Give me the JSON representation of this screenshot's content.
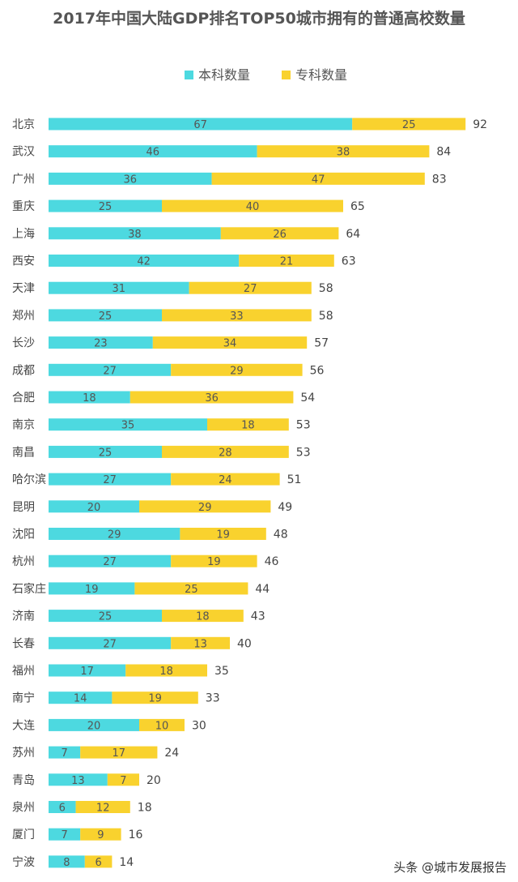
{
  "chart_data": {
    "type": "bar",
    "orientation": "horizontal",
    "stacked": true,
    "title": "2017年中国大陆GDP排名TOP50城市拥有的普通高校数量",
    "legend_position": "top-center",
    "categories": [
      "北京",
      "武汉",
      "广州",
      "重庆",
      "上海",
      "西安",
      "天津",
      "郑州",
      "长沙",
      "成都",
      "合肥",
      "南京",
      "南昌",
      "哈尔滨",
      "昆明",
      "沈阳",
      "杭州",
      "石家庄",
      "济南",
      "长春",
      "福州",
      "南宁",
      "大连",
      "苏州",
      "青岛",
      "泉州",
      "厦门",
      "宁波"
    ],
    "series": [
      {
        "name": "本科数量",
        "color": "#4dd9e0",
        "values": [
          67,
          46,
          36,
          25,
          38,
          42,
          31,
          25,
          23,
          27,
          18,
          35,
          25,
          27,
          20,
          29,
          27,
          19,
          25,
          27,
          17,
          14,
          20,
          7,
          13,
          6,
          7,
          8
        ]
      },
      {
        "name": "专科数量",
        "color": "#f9d22e",
        "values": [
          25,
          38,
          47,
          40,
          26,
          21,
          27,
          33,
          34,
          29,
          36,
          18,
          28,
          24,
          29,
          19,
          19,
          25,
          18,
          13,
          18,
          19,
          10,
          17,
          7,
          12,
          9,
          6
        ]
      }
    ],
    "totals": [
      92,
      84,
      83,
      65,
      64,
      63,
      58,
      58,
      57,
      56,
      54,
      53,
      53,
      51,
      49,
      48,
      46,
      44,
      43,
      40,
      35,
      33,
      30,
      24,
      20,
      18,
      16,
      14
    ],
    "xlim": [
      0,
      92
    ]
  },
  "watermark": "头条 @城市发展报告"
}
